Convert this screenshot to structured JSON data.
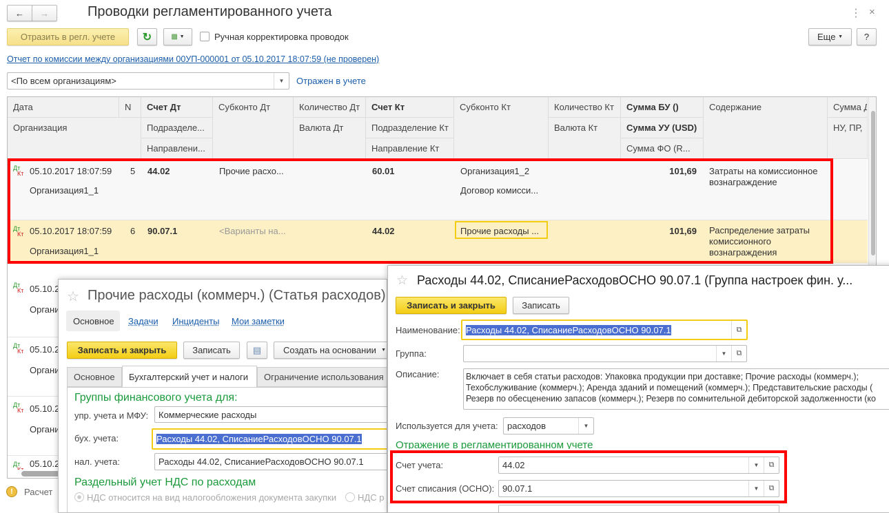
{
  "main": {
    "title": "Проводки регламентированного учета",
    "reflect_button": "Отразить в регл. учете",
    "manual_checkbox": "Ручная корректировка проводок",
    "manual_checked": false,
    "more_button": "Еще",
    "help_button": "?",
    "document_link": "Отчет по комиссии между организациями 00УП-000001 от 05.10.2017 18:07:59 (не проверен)",
    "org_filter": "<По всем организациям>",
    "status_link": "Отражен в учете",
    "status_bar": "Расчет",
    "columns": {
      "date": "Дата",
      "n": "N",
      "acc_dt": "Счет Дт",
      "subk_dt": "Субконто Дт",
      "qty_dt": "Количество Дт",
      "acc_kt": "Счет Кт",
      "subk_kt": "Субконто Кт",
      "qty_kt": "Количество Кт",
      "sum_bu": "Сумма БУ ()",
      "content": "Содержание",
      "sum_d": "Сумма Д",
      "org": "Организация",
      "dept_dt": "Подразделе...",
      "cur_dt": "Валюта Дт",
      "dept_kt": "Подразделение Кт",
      "cur_kt": "Валюта Кт",
      "sum_uu": "Сумма УУ (USD)",
      "nu": "НУ, ПР,",
      "dir_dt": "Направлени...",
      "dir_kt": "Направление Кт",
      "sum_fo": "Сумма ФО (R..."
    },
    "rows": [
      {
        "date": "05.10.2017 18:07:59",
        "n": "5",
        "acc_dt": "44.02",
        "subk_dt": "Прочие расхо...",
        "acc_kt": "60.01",
        "subk_kt": "Организация1_2",
        "subk_kt2": "Договор комисси...",
        "sum": "101,69",
        "content": "Затраты на комиссионное вознаграждение",
        "org": "Организация1_1"
      },
      {
        "date": "05.10.2017 18:07:59",
        "n": "6",
        "acc_dt": "90.07.1",
        "subk_dt": "<Варианты на...",
        "acc_kt": "44.02",
        "subk_kt": "Прочие расходы ...",
        "sum": "101,69",
        "content": "Распределение затраты комиссионного вознаграждения",
        "org": "Организация1_1"
      }
    ],
    "partial_rows": [
      {
        "date": "05.10.2",
        "org": "Органи"
      },
      {
        "date": "05.10.2",
        "org": "Органи"
      },
      {
        "date": "05.10.2",
        "org": "Органи"
      },
      {
        "date": "05.10.2"
      }
    ],
    "dt_label": "Дт",
    "kt_label": "Кт"
  },
  "expense_item": {
    "title": "Прочие расходы  (коммерч.) (Статья расходов) -",
    "nav": [
      "Основное",
      "Задачи",
      "Инциденты",
      "Мои заметки"
    ],
    "save_close": "Записать и закрыть",
    "save": "Записать",
    "create_based": "Создать на основании",
    "tabs": [
      "Основное",
      "Бухгалтерский учет и налоги",
      "Ограничение использования"
    ],
    "section1": "Группы финансового учета для:",
    "mgmt_label": "упр. учета и МФУ:",
    "mgmt_value": "Коммерческие расходы",
    "acc_label": "бух. учета:",
    "acc_value": "Расходы 44.02, СписаниеРасходовОСНО 90.07.1",
    "tax_label": "нал. учета:",
    "tax_value": "Расходы 44.02, СписаниеРасходовОСНО 90.07.1",
    "section2": "Раздельный учет НДС по расходам",
    "radio1": "НДС относится на вид налогообложения документа закупки",
    "radio2": "НДС р"
  },
  "fin_group": {
    "title": "Расходы 44.02, СписаниеРасходовОСНО 90.07.1 (Группа настроек фин. у...",
    "save_close": "Записать и закрыть",
    "save": "Записать",
    "name_label": "Наименование:",
    "name_value": "Расходы 44.02, СписаниеРасходовОСНО 90.07.1",
    "group_label": "Группа:",
    "group_value": "",
    "desc_label": "Описание:",
    "desc_lines": [
      "Включает в себя статьи расходов: Упаковка продукции при доставке; Прочие расходы  (коммерч.);",
      "Техобслуживание (коммерч.); Аренда зданий и помещений (коммерч.); Представительские расходы (",
      "Резерв по обесценению запасов (коммерч.); Резерв по сомнительной дебиторской задолженности (ко"
    ],
    "used_label": "Используется для учета:",
    "used_value": "расходов",
    "section": "Отражение в регламентированном учете",
    "account_label": "Счет учета:",
    "account_value": "44.02",
    "writeoff_label": "Счет списания (ОСНО):",
    "writeoff_value": "90.07.1"
  },
  "colors": {
    "highlight": "#ff0000",
    "yellow_button": "#f3cd15",
    "row_selected": "#fdf0c4",
    "green_heading": "#1a9a3a",
    "link": "#1a5dab"
  }
}
